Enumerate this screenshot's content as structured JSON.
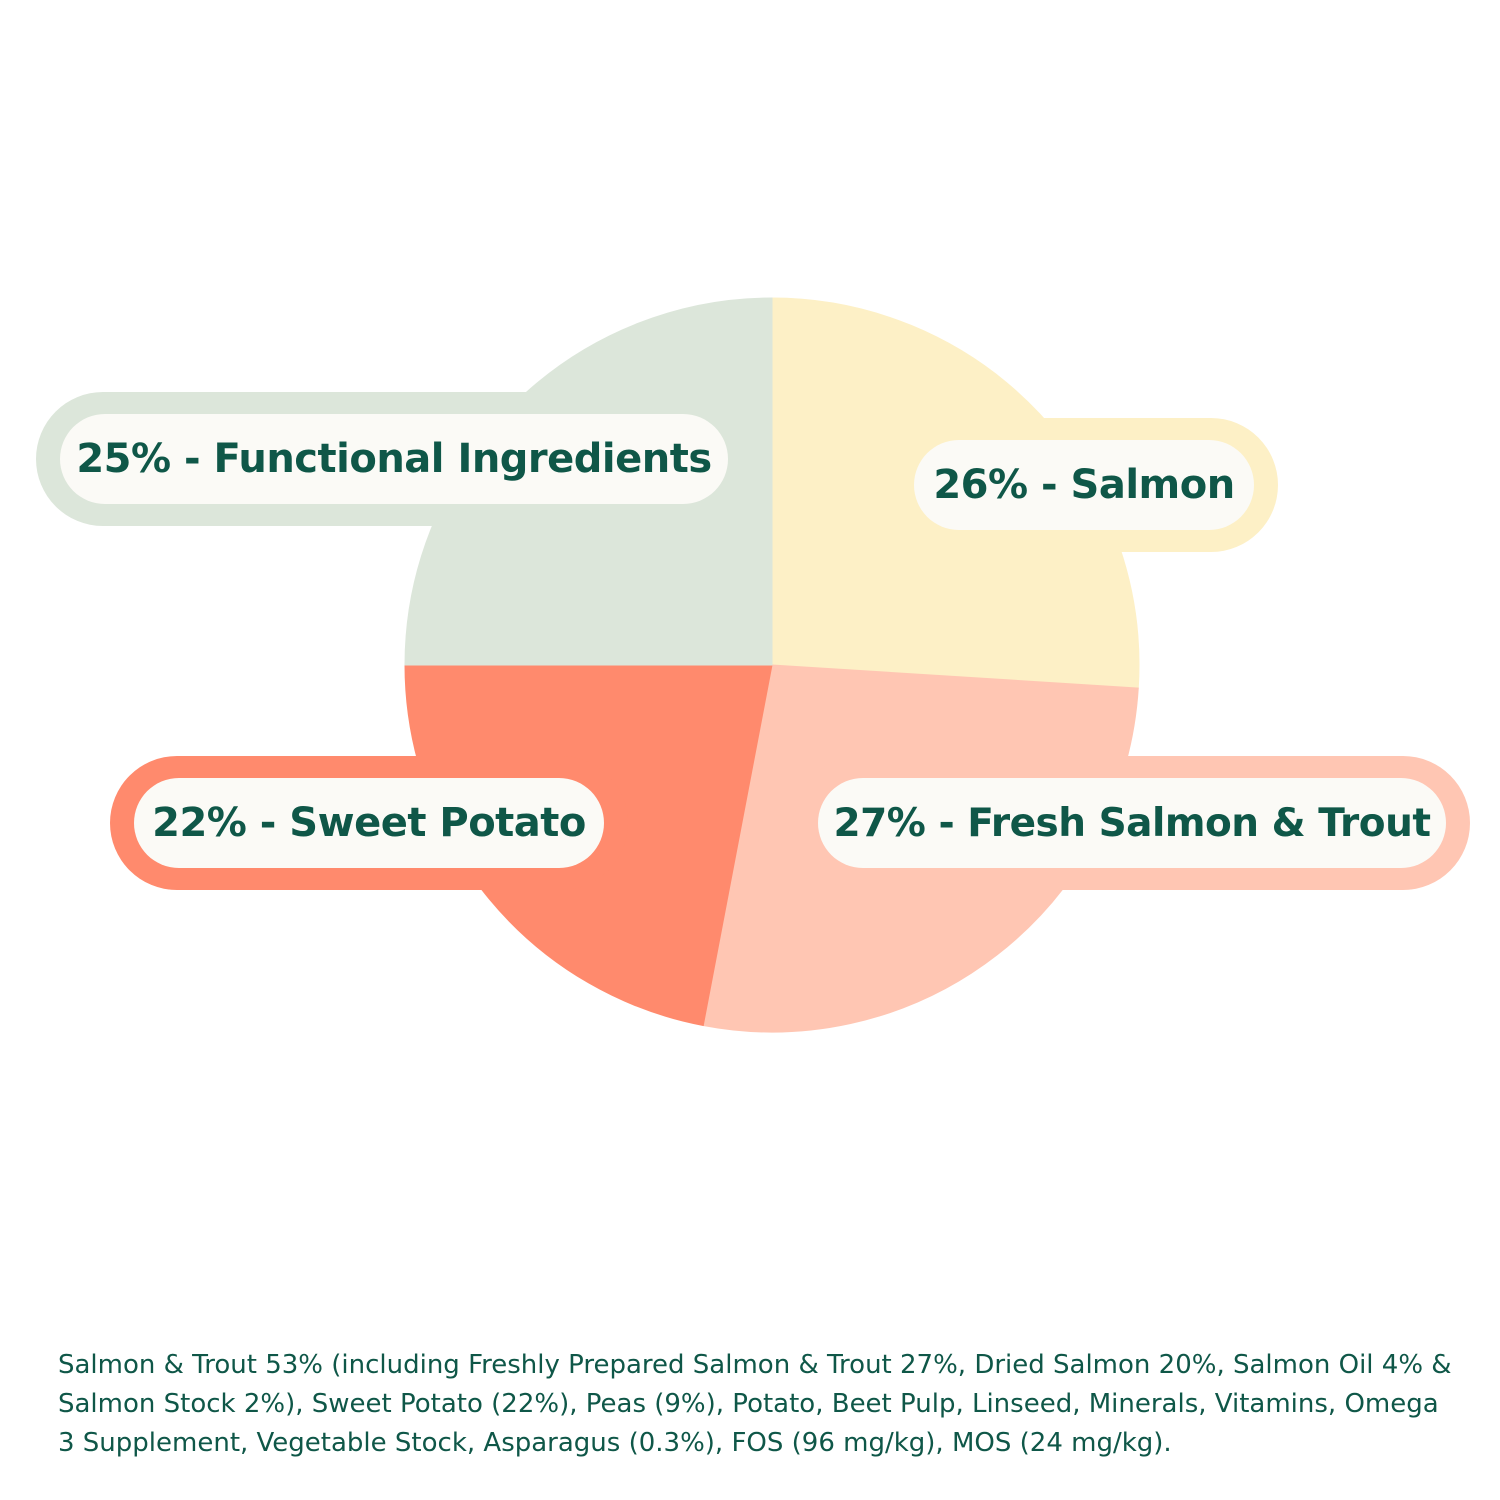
{
  "chart_data": {
    "type": "pie",
    "slices": [
      {
        "label": "26% - Salmon",
        "value": 26,
        "color": "#fdf0c6"
      },
      {
        "label": "27% - Fresh Salmon & Trout",
        "value": 27,
        "color": "#ffc6b3"
      },
      {
        "label": "22% - Sweet Potato",
        "value": 22,
        "color": "#ff8a6d"
      },
      {
        "label": "25% - Functional Ingredients",
        "value": 25,
        "color": "#dce6da"
      }
    ]
  },
  "ingredients_text": "Salmon & Trout 53% (including Freshly Prepared Salmon & Trout 27%, Dried Salmon 20%, Salmon Oil 4% & Salmon Stock 2%), Sweet Potato (22%), Peas (9%), Potato, Beet Pulp, Linseed, Minerals, Vitamins, Omega 3 Supplement, Vegetable Stock, Asparagus (0.3%), FOS (96 mg/kg), MOS (24 mg/kg).",
  "colors": {
    "text": "#0f5748",
    "pill_inner": "#fbfaf6"
  }
}
